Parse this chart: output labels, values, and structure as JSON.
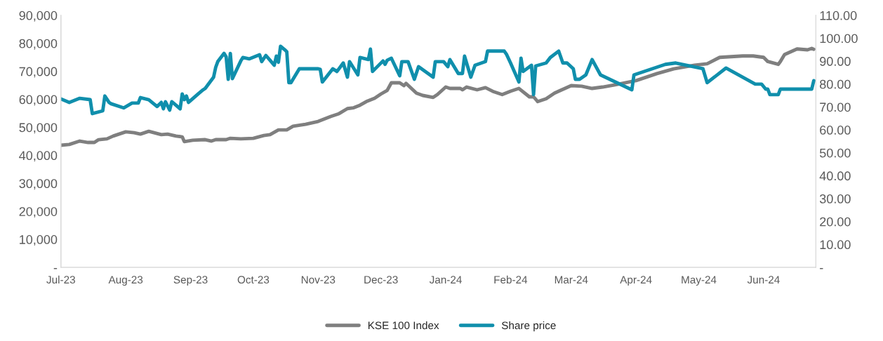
{
  "chart_data": {
    "type": "line",
    "xlim": [
      "2023-07-01",
      "2024-06-26"
    ],
    "xticks": [
      {
        "value": "2023-07-01",
        "label": "Jul-23"
      },
      {
        "value": "2023-08-01",
        "label": "Aug-23"
      },
      {
        "value": "2023-09-01",
        "label": "Sep-23"
      },
      {
        "value": "2023-10-01",
        "label": "Oct-23"
      },
      {
        "value": "2023-11-01",
        "label": "Nov-23"
      },
      {
        "value": "2023-12-01",
        "label": "Dec-23"
      },
      {
        "value": "2024-01-01",
        "label": "Jan-24"
      },
      {
        "value": "2024-02-01",
        "label": "Feb-24"
      },
      {
        "value": "2024-03-01",
        "label": "Mar-24"
      },
      {
        "value": "2024-04-01",
        "label": "Apr-24"
      },
      {
        "value": "2024-05-01",
        "label": "May-24"
      },
      {
        "value": "2024-06-01",
        "label": "Jun-24"
      }
    ],
    "ylim": [
      0,
      90000
    ],
    "yticks": [
      {
        "value": 0,
        "label": "-"
      },
      {
        "value": 10000,
        "label": "10,000"
      },
      {
        "value": 20000,
        "label": "20,000"
      },
      {
        "value": 30000,
        "label": "30,000"
      },
      {
        "value": 40000,
        "label": "40,000"
      },
      {
        "value": 50000,
        "label": "50,000"
      },
      {
        "value": 60000,
        "label": "60,000"
      },
      {
        "value": 70000,
        "label": "70,000"
      },
      {
        "value": 80000,
        "label": "80,000"
      },
      {
        "value": 90000,
        "label": "90,000"
      }
    ],
    "y2lim": [
      0,
      110
    ],
    "y2ticks": [
      {
        "value": 0,
        "label": "-"
      },
      {
        "value": 10,
        "label": "10.00"
      },
      {
        "value": 20,
        "label": "20.00"
      },
      {
        "value": 30,
        "label": "30.00"
      },
      {
        "value": 40,
        "label": "40.00"
      },
      {
        "value": 50,
        "label": "50.00"
      },
      {
        "value": 60,
        "label": "60.00"
      },
      {
        "value": 70,
        "label": "70.00"
      },
      {
        "value": 80,
        "label": "80.00"
      },
      {
        "value": 90,
        "label": "90.00"
      },
      {
        "value": 100,
        "label": "100.00"
      },
      {
        "value": 110,
        "label": "110.00"
      }
    ],
    "grid": false,
    "legend": "bottom",
    "marker": "none",
    "line_style": "solid",
    "series": [
      {
        "name": "KSE 100 Index",
        "color": "#7f7f7f",
        "x": [
          "2023-07-01",
          "2023-07-05",
          "2023-07-10",
          "2023-07-14",
          "2023-07-17",
          "2023-07-19",
          "2023-07-23",
          "2023-07-26",
          "2023-08-01",
          "2023-08-05",
          "2023-08-08",
          "2023-08-12",
          "2023-08-18",
          "2023-08-21",
          "2023-08-25",
          "2023-08-28",
          "2023-08-29",
          "2023-09-02",
          "2023-09-08",
          "2023-09-11",
          "2023-09-13",
          "2023-09-18",
          "2023-09-20",
          "2023-09-25",
          "2023-10-01",
          "2023-10-06",
          "2023-10-09",
          "2023-10-13",
          "2023-10-17",
          "2023-10-20",
          "2023-10-26",
          "2023-11-01",
          "2023-11-07",
          "2023-11-11",
          "2023-11-15",
          "2023-11-18",
          "2023-11-21",
          "2023-11-24",
          "2023-11-28",
          "2023-12-01",
          "2023-12-04",
          "2023-12-06",
          "2023-12-10",
          "2023-12-12",
          "2023-12-13",
          "2023-12-18",
          "2023-12-21",
          "2023-12-26",
          "2023-12-28",
          "2024-01-01",
          "2024-01-03",
          "2024-01-08",
          "2024-01-09",
          "2024-01-11",
          "2024-01-16",
          "2024-01-20",
          "2024-01-24",
          "2024-01-28",
          "2024-02-01",
          "2024-02-05",
          "2024-02-10",
          "2024-02-12",
          "2024-02-14",
          "2024-02-18",
          "2024-02-22",
          "2024-02-24",
          "2024-02-27",
          "2024-03-01",
          "2024-03-06",
          "2024-03-11",
          "2024-03-16",
          "2024-03-22",
          "2024-04-01",
          "2024-04-11",
          "2024-04-19",
          "2024-04-29",
          "2024-05-05",
          "2024-05-11",
          "2024-05-22",
          "2024-05-27",
          "2024-06-01",
          "2024-06-03",
          "2024-06-08",
          "2024-06-09",
          "2024-06-11",
          "2024-06-17",
          "2024-06-22",
          "2024-06-24",
          "2024-06-25"
        ],
        "values": [
          43600,
          43900,
          45100,
          44600,
          44600,
          45600,
          45900,
          46900,
          48400,
          48100,
          47600,
          48600,
          47400,
          47600,
          46900,
          46600,
          44900,
          45400,
          45600,
          45100,
          45600,
          45600,
          46100,
          45900,
          46100,
          47100,
          47400,
          49100,
          49100,
          50400,
          51100,
          52100,
          53900,
          54900,
          56700,
          57000,
          57900,
          59200,
          60400,
          61900,
          63200,
          65900,
          65900,
          64900,
          65700,
          62200,
          61400,
          60700,
          61700,
          64400,
          63900,
          63900,
          63400,
          64400,
          63400,
          64200,
          62700,
          61700,
          62900,
          63900,
          60900,
          60900,
          59200,
          60200,
          62200,
          62900,
          63900,
          64900,
          64700,
          63900,
          64400,
          65200,
          66700,
          69200,
          70900,
          72200,
          72700,
          75000,
          75500,
          75500,
          75000,
          73500,
          72500,
          73500,
          76000,
          78000,
          77700,
          78200,
          77900
        ]
      },
      {
        "name": "Share price",
        "color": "#108fac",
        "axis": "y2",
        "x": [
          "2023-07-01",
          "2023-07-05",
          "2023-07-10",
          "2023-07-15",
          "2023-07-16",
          "2023-07-21",
          "2023-07-22",
          "2023-07-24",
          "2023-07-25",
          "2023-07-31",
          "2023-08-04",
          "2023-08-07",
          "2023-08-08",
          "2023-08-12",
          "2023-08-16",
          "2023-08-18",
          "2023-08-19",
          "2023-08-20",
          "2023-08-22",
          "2023-08-23",
          "2023-08-25",
          "2023-08-27",
          "2023-08-28",
          "2023-08-29",
          "2023-08-30",
          "2023-08-31",
          "2023-09-05",
          "2023-09-07",
          "2023-09-08",
          "2023-09-12",
          "2023-09-13",
          "2023-09-14",
          "2023-09-17",
          "2023-09-18",
          "2023-09-19",
          "2023-09-20",
          "2023-09-21",
          "2023-09-25",
          "2023-09-26",
          "2023-09-29",
          "2023-10-04",
          "2023-10-05",
          "2023-10-07",
          "2023-10-09",
          "2023-10-11",
          "2023-10-12",
          "2023-10-13",
          "2023-10-14",
          "2023-10-16",
          "2023-10-17",
          "2023-10-18",
          "2023-10-19",
          "2023-10-23",
          "2023-11-01",
          "2023-11-02",
          "2023-11-03",
          "2023-11-08",
          "2023-11-10",
          "2023-11-13",
          "2023-11-15",
          "2023-11-16",
          "2023-11-20",
          "2023-11-21",
          "2023-11-25",
          "2023-11-26",
          "2023-11-27",
          "2023-12-02",
          "2023-12-03",
          "2023-12-04",
          "2023-12-06",
          "2023-12-10",
          "2023-12-11",
          "2023-12-14",
          "2023-12-17",
          "2023-12-19",
          "2023-12-26",
          "2023-12-27",
          "2023-12-31",
          "2024-01-02",
          "2024-01-03",
          "2024-01-07",
          "2024-01-09",
          "2024-01-10",
          "2024-01-13",
          "2024-01-15",
          "2024-01-20",
          "2024-01-21",
          "2024-01-29",
          "2024-01-30",
          "2024-02-01",
          "2024-02-05",
          "2024-02-06",
          "2024-02-07",
          "2024-02-11",
          "2024-02-12",
          "2024-02-13",
          "2024-02-18",
          "2024-02-20",
          "2024-02-24",
          "2024-02-26",
          "2024-02-28",
          "2024-03-02",
          "2024-03-03",
          "2024-03-05",
          "2024-03-08",
          "2024-03-11",
          "2024-03-15",
          "2024-03-30",
          "2024-03-31",
          "2024-04-15",
          "2024-04-20",
          "2024-05-03",
          "2024-05-05",
          "2024-05-14",
          "2024-05-28",
          "2024-05-31",
          "2024-06-02",
          "2024-06-03",
          "2024-06-04",
          "2024-06-08",
          "2024-06-09",
          "2024-06-24",
          "2024-06-25"
        ],
        "values": [
          73.5,
          72.0,
          73.8,
          73.2,
          67.1,
          68.3,
          74.8,
          72.0,
          71.4,
          69.6,
          71.7,
          71.7,
          74.1,
          73.2,
          70.2,
          72.0,
          69.2,
          72.3,
          68.6,
          72.3,
          70.8,
          69.2,
          75.7,
          73.2,
          74.8,
          72.0,
          76.0,
          77.5,
          78.1,
          83.0,
          87.3,
          89.8,
          93.4,
          91.9,
          82.1,
          93.4,
          82.4,
          90.1,
          91.6,
          91.0,
          92.8,
          89.8,
          92.5,
          90.4,
          88.2,
          92.2,
          89.5,
          96.5,
          95.0,
          94.1,
          80.6,
          80.6,
          86.7,
          86.7,
          86.4,
          80.9,
          86.7,
          85.5,
          89.2,
          83.0,
          89.8,
          84.0,
          91.6,
          90.7,
          95.3,
          85.5,
          90.1,
          88.6,
          90.4,
          91.3,
          83.6,
          89.8,
          89.8,
          82.1,
          87.6,
          83.0,
          89.8,
          89.8,
          87.6,
          90.7,
          84.6,
          84.6,
          92.2,
          83.0,
          88.2,
          89.8,
          94.4,
          94.4,
          93.1,
          89.2,
          80.9,
          91.3,
          85.5,
          88.2,
          75.4,
          87.9,
          89.2,
          91.6,
          94.4,
          89.2,
          89.2,
          86.7,
          82.1,
          82.1,
          84.0,
          90.7,
          84.0,
          77.5,
          84.0,
          88.6,
          89.2,
          86.7,
          80.6,
          87.0,
          80.0,
          80.0,
          77.8,
          77.8,
          75.4,
          75.4,
          77.8,
          77.8,
          81.5
        ]
      }
    ]
  }
}
